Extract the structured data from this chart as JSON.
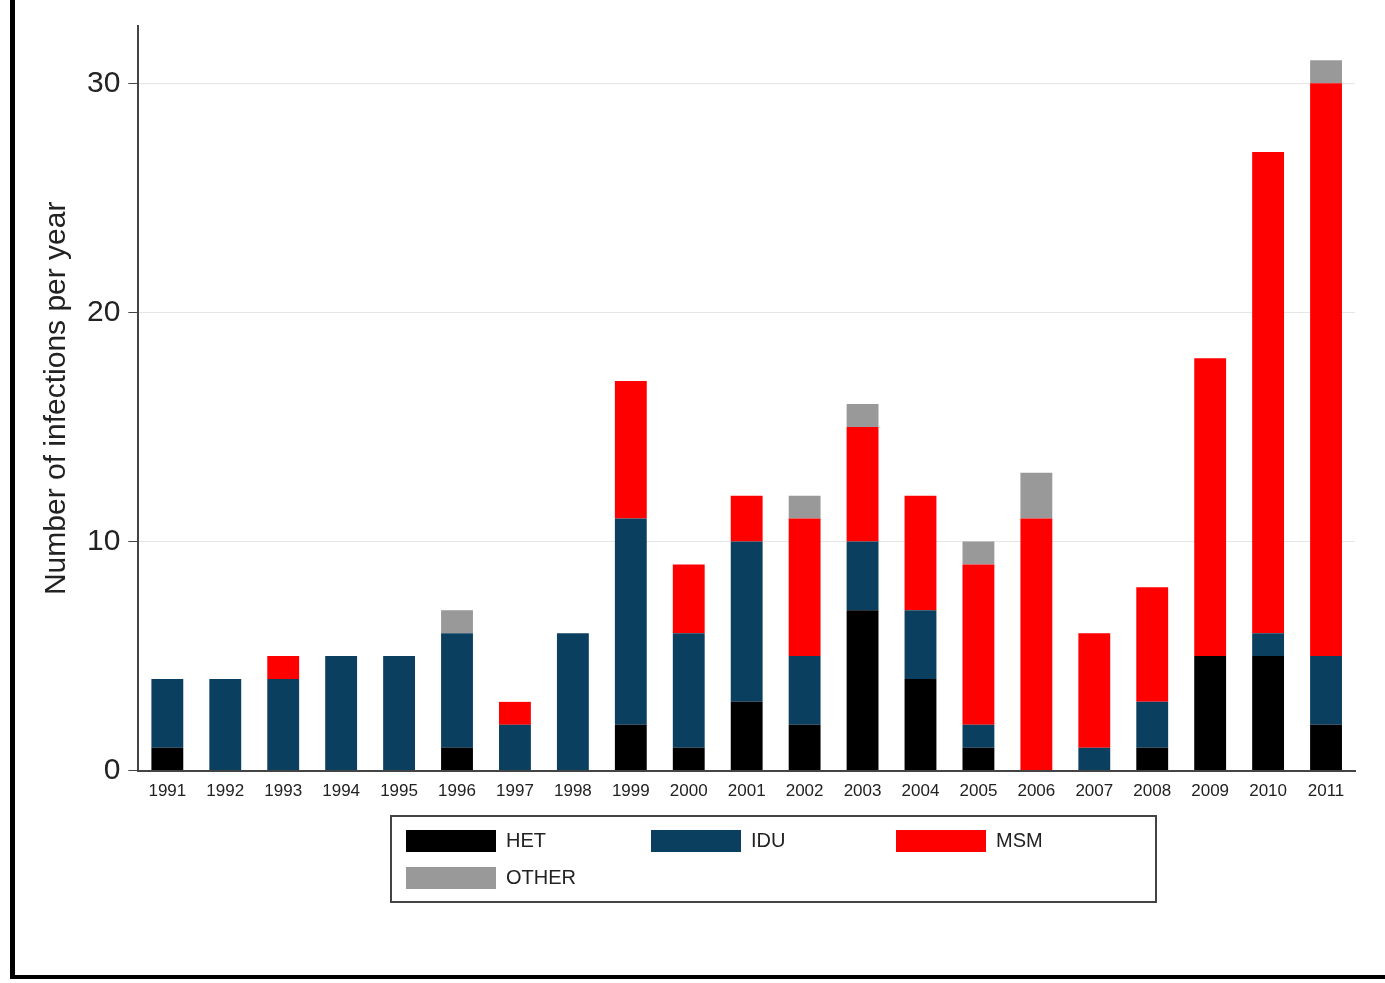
{
  "chart_data": {
    "type": "bar",
    "stacked": true,
    "ylabel": "Number of infections per year",
    "categories": [
      "1991",
      "1992",
      "1993",
      "1994",
      "1995",
      "1996",
      "1997",
      "1998",
      "1999",
      "2000",
      "2001",
      "2002",
      "2003",
      "2004",
      "2005",
      "2006",
      "2007",
      "2008",
      "2009",
      "2010",
      "2011"
    ],
    "series": [
      {
        "name": "HET",
        "color": "#000000",
        "values": [
          1,
          0,
          0,
          0,
          0,
          1,
          0,
          0,
          2,
          1,
          3,
          2,
          7,
          4,
          1,
          0,
          0,
          1,
          5,
          5,
          2
        ]
      },
      {
        "name": "IDU",
        "color": "#0b3f5f",
        "values": [
          3,
          4,
          4,
          5,
          5,
          5,
          2,
          6,
          9,
          5,
          7,
          3,
          3,
          3,
          1,
          0,
          1,
          2,
          0,
          1,
          3
        ]
      },
      {
        "name": "MSM",
        "color": "#ff0000",
        "values": [
          0,
          0,
          1,
          0,
          0,
          0,
          1,
          0,
          6,
          3,
          2,
          6,
          5,
          5,
          7,
          11,
          5,
          5,
          13,
          21,
          25
        ]
      },
      {
        "name": "OTHER",
        "color": "#999999",
        "values": [
          0,
          0,
          0,
          0,
          0,
          1,
          0,
          0,
          0,
          0,
          0,
          1,
          1,
          0,
          1,
          2,
          0,
          0,
          0,
          0,
          1
        ]
      }
    ],
    "ylim": [
      0,
      32.5
    ],
    "yticks": [
      0,
      10,
      20,
      30
    ],
    "grid": "y",
    "legend": "bottom"
  }
}
